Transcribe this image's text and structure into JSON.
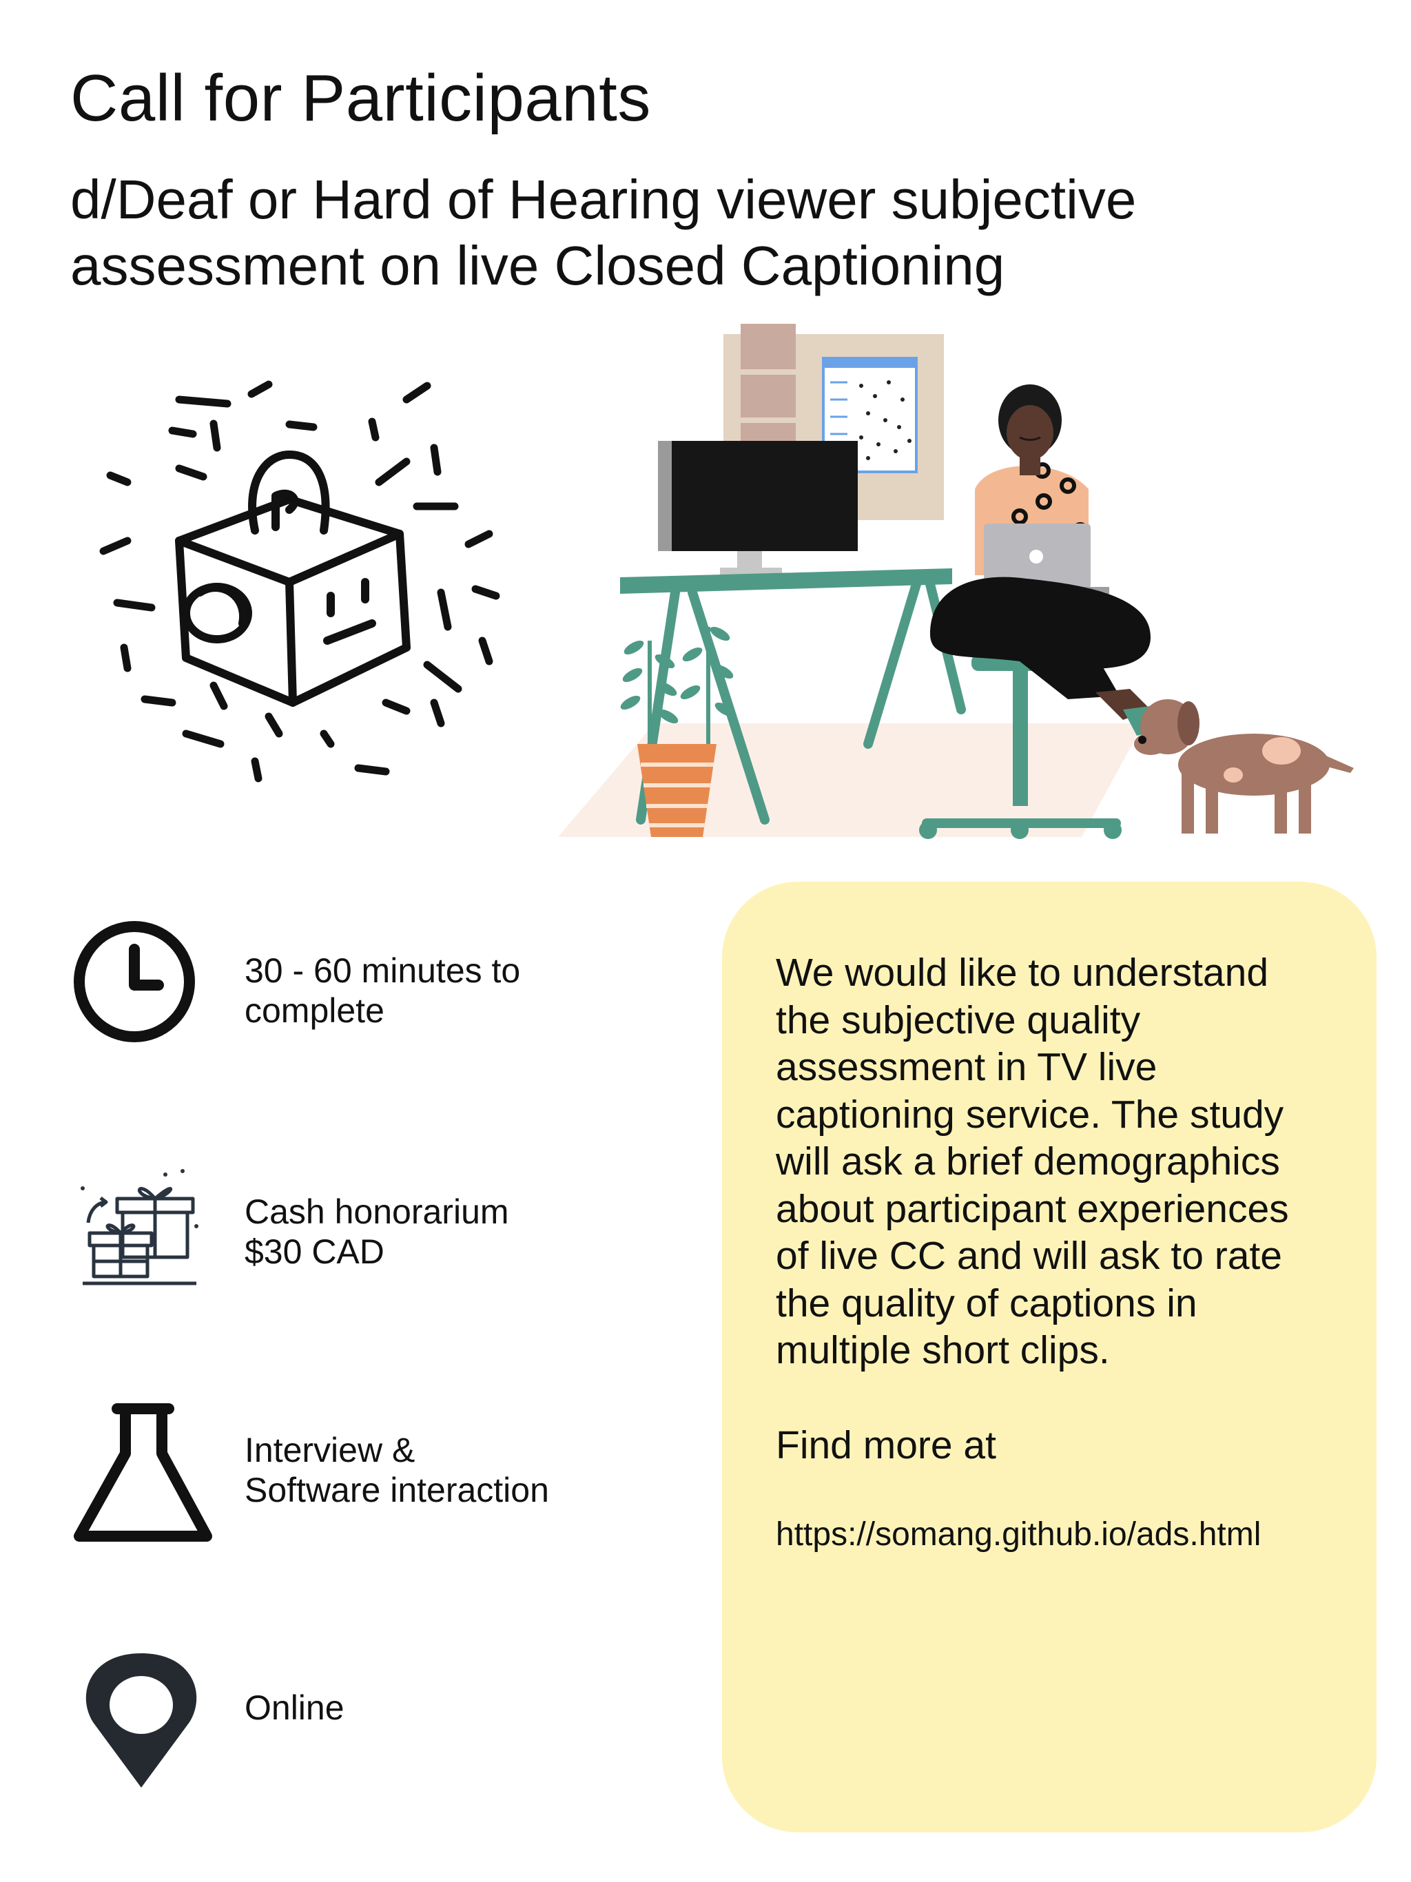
{
  "title": "Call for Participants",
  "subtitle": {
    "line1": "d/Deaf or Hard of Hearing viewer subjective",
    "line2": "assessment on live Closed Captioning"
  },
  "illustrations": {
    "left": "camera-box-doodle",
    "right": "person-at-desk-with-dog"
  },
  "features": [
    {
      "icon": "clock-icon",
      "line1": "30 - 60 minutes to",
      "line2": "complete"
    },
    {
      "icon": "gift-icon",
      "line1": "Cash honorarium",
      "line2": "$30 CAD"
    },
    {
      "icon": "flask-icon",
      "line1": "Interview &",
      "line2": "Software interaction"
    },
    {
      "icon": "location-pin-icon",
      "line1": "Online"
    }
  ],
  "info": {
    "lines": [
      "We would like to understand",
      "the subjective quality",
      "assessment in TV live",
      "captioning service. The study",
      "will ask a brief demographics",
      "about participant experiences",
      "of live CC and will ask to rate",
      "the quality of captions in",
      "multiple short clips."
    ],
    "find_more": "Find more at",
    "link": "https://somang.github.io/ads.html"
  },
  "colors": {
    "card_background": "#fdf3b8",
    "desk_green": "#4f9a86",
    "pot_orange": "#e88a4f",
    "dog_brown": "#a47766",
    "text": "#111111"
  }
}
